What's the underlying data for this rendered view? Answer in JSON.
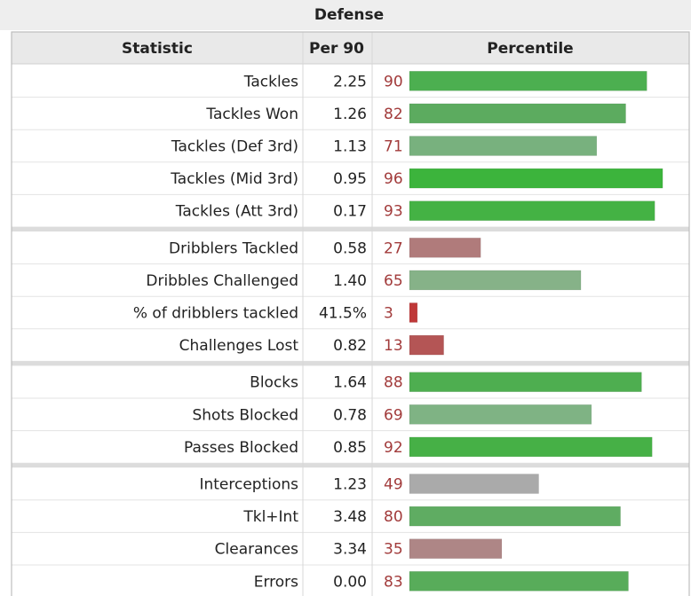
{
  "table": {
    "caption": "Defense",
    "headers": {
      "statistic": "Statistic",
      "per90": "Per 90",
      "percentile": "Percentile"
    }
  },
  "chart_data": {
    "type": "bar",
    "title": "Defense",
    "columns": [
      "Statistic",
      "Per 90",
      "Percentile"
    ],
    "xlim": [
      0,
      100
    ],
    "groups": [
      [
        {
          "statistic": "Tackles",
          "per90": "2.25",
          "percentile": 90,
          "color": "#4caf50"
        },
        {
          "statistic": "Tackles Won",
          "per90": "1.26",
          "percentile": 82,
          "color": "#5cab5f"
        },
        {
          "statistic": "Tackles (Def 3rd)",
          "per90": "1.13",
          "percentile": 71,
          "color": "#78b17e"
        },
        {
          "statistic": "Tackles (Mid 3rd)",
          "per90": "0.95",
          "percentile": 96,
          "color": "#3cb43c"
        },
        {
          "statistic": "Tackles (Att 3rd)",
          "per90": "0.17",
          "percentile": 93,
          "color": "#44b244"
        }
      ],
      [
        {
          "statistic": "Dribblers Tackled",
          "per90": "0.58",
          "percentile": 27,
          "color": "#b07b7b"
        },
        {
          "statistic": "Dribbles Challenged",
          "per90": "1.40",
          "percentile": 65,
          "color": "#86b288"
        },
        {
          "statistic": "% of dribblers tackled",
          "per90": "41.5%",
          "percentile": 3,
          "color": "#bf3838"
        },
        {
          "statistic": "Challenges Lost",
          "per90": "0.82",
          "percentile": 13,
          "color": "#b45555"
        }
      ],
      [
        {
          "statistic": "Blocks",
          "per90": "1.64",
          "percentile": 88,
          "color": "#4eae50"
        },
        {
          "statistic": "Shots Blocked",
          "per90": "0.78",
          "percentile": 69,
          "color": "#7fb384"
        },
        {
          "statistic": "Passes Blocked",
          "per90": "0.85",
          "percentile": 92,
          "color": "#46b046"
        }
      ],
      [
        {
          "statistic": "Interceptions",
          "per90": "1.23",
          "percentile": 49,
          "color": "#aaaaaa"
        },
        {
          "statistic": "Tkl+Int",
          "per90": "3.48",
          "percentile": 80,
          "color": "#5fac62"
        },
        {
          "statistic": "Clearances",
          "per90": "3.34",
          "percentile": 35,
          "color": "#ae8686"
        },
        {
          "statistic": "Errors",
          "per90": "0.00",
          "percentile": 83,
          "color": "#58ac5a"
        }
      ]
    ]
  }
}
